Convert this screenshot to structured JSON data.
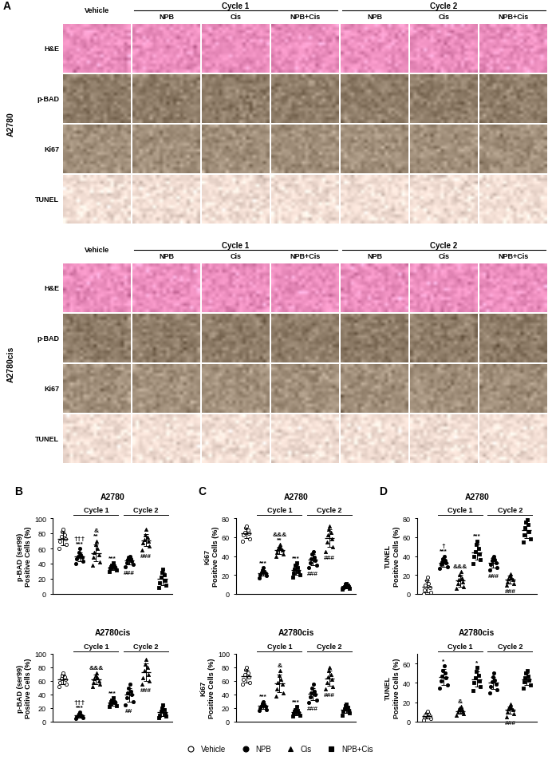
{
  "panel_a": {
    "label": "A",
    "columns": [
      "Vehicle",
      "NPB",
      "Cis",
      "NPB+Cis",
      "NPB",
      "Cis",
      "NPB+Cis"
    ],
    "cycles": [
      "Cycle 1",
      "Cycle 2"
    ],
    "rows": [
      "H&E",
      "p-BAD",
      "Ki67",
      "TUNEL"
    ],
    "cell_lines": [
      "A2780",
      "A2780cis"
    ]
  },
  "legend": "lower center",
  "legend_groups": [
    {
      "name": "Vehicle",
      "marker": "circle_open"
    },
    {
      "name": "NPB",
      "marker": "circle"
    },
    {
      "name": "Cis",
      "marker": "triangle"
    },
    {
      "name": "NPB+Cis",
      "marker": "square"
    }
  ],
  "chart_data": [
    {
      "type": "scatter",
      "panel_label": "B",
      "title": "A2780",
      "ylabel": "p-BAD (ser99)\nPositive Cells (%)",
      "ylim": [
        0,
        100
      ],
      "yticks": [
        0,
        20,
        40,
        60,
        80,
        100
      ],
      "tick_labels": "y",
      "color": "#000000",
      "cycles": [
        "Cycle 1",
        "Cycle 2"
      ],
      "series": [
        {
          "name": "Vehicle",
          "marker": "circle_open",
          "values": [
            60,
            65,
            70,
            73,
            76,
            78,
            82,
            85
          ],
          "mean": 73,
          "sd": 9
        },
        {
          "name": "NPB",
          "marker": "circle",
          "values": [
            40,
            43,
            46,
            48,
            50,
            52,
            55,
            60
          ],
          "mean": 49,
          "sd": 6,
          "annotation": [
            "†††",
            "***"
          ]
        },
        {
          "name": "Cis",
          "marker": "triangle",
          "values": [
            38,
            42,
            48,
            52,
            55,
            60,
            65,
            70
          ],
          "mean": 54,
          "sd": 11,
          "annotation": [
            "&",
            "**"
          ]
        },
        {
          "name": "NPB+Cis",
          "marker": "square",
          "values": [
            30,
            32,
            34,
            35,
            36,
            37,
            38,
            41
          ],
          "mean": 35,
          "sd": 3,
          "annotation": [
            "***"
          ]
        },
        {
          "name": "NPB",
          "marker": "circle",
          "values": [
            36,
            39,
            41,
            43,
            45,
            46,
            48,
            50
          ],
          "mean": 44,
          "sd": 5,
          "annotation_below": [
            "###"
          ]
        },
        {
          "name": "Cis",
          "marker": "triangle",
          "values": [
            58,
            63,
            67,
            70,
            72,
            75,
            78,
            85
          ],
          "mean": 71,
          "sd": 8,
          "annotation_below": [
            "###"
          ]
        },
        {
          "name": "NPB+Cis",
          "marker": "square",
          "values": [
            8,
            12,
            15,
            18,
            22,
            25,
            28,
            33
          ],
          "mean": 20,
          "sd": 8
        }
      ]
    },
    {
      "type": "scatter",
      "panel_label": "C",
      "title": "A2780",
      "ylabel": "Ki67\nPositive Cells (%)",
      "ylim": [
        0,
        80
      ],
      "yticks": [
        0,
        20,
        40,
        60,
        80
      ],
      "tick_labels": "y",
      "color": "#000000",
      "cycles": [
        "Cycle 1",
        "Cycle 2"
      ],
      "series": [
        {
          "name": "Vehicle",
          "marker": "circle_open",
          "values": [
            56,
            58,
            62,
            64,
            65,
            67,
            70,
            72
          ],
          "mean": 64,
          "sd": 5
        },
        {
          "name": "NPB",
          "marker": "circle",
          "values": [
            17,
            19,
            20,
            22,
            23,
            24,
            25,
            28
          ],
          "mean": 22,
          "sd": 3,
          "annotation": [
            "***"
          ]
        },
        {
          "name": "Cis",
          "marker": "triangle",
          "values": [
            40,
            42,
            44,
            46,
            47,
            48,
            50,
            52
          ],
          "mean": 46,
          "sd": 4,
          "annotation": [
            "&&&",
            "**"
          ]
        },
        {
          "name": "NPB+Cis",
          "marker": "square",
          "values": [
            18,
            20,
            22,
            24,
            26,
            28,
            30,
            33
          ],
          "mean": 25,
          "sd": 5,
          "annotation": [
            "***"
          ]
        },
        {
          "name": "NPB",
          "marker": "circle",
          "values": [
            28,
            30,
            33,
            35,
            37,
            39,
            42,
            45
          ],
          "mean": 36,
          "sd": 6,
          "annotation_below": [
            "###"
          ]
        },
        {
          "name": "Cis",
          "marker": "triangle",
          "values": [
            45,
            50,
            55,
            58,
            62,
            65,
            68,
            72
          ],
          "mean": 59,
          "sd": 9,
          "annotation_below": [
            "###"
          ]
        },
        {
          "name": "NPB+Cis",
          "marker": "square",
          "values": [
            5,
            6,
            7,
            8,
            8,
            9,
            10,
            11
          ],
          "mean": 8,
          "sd": 2
        }
      ]
    },
    {
      "type": "scatter",
      "panel_label": "D",
      "title": "A2780",
      "ylabel": "TUNEL\nPositive Cells (%)",
      "ylim": [
        0,
        80
      ],
      "yticks": [
        0,
        20,
        40,
        60,
        80
      ],
      "tick_labels": "y",
      "color": "#000000",
      "cycles": [
        "Cycle 1",
        "Cycle 2"
      ],
      "series": [
        {
          "name": "Vehicle",
          "marker": "circle_open",
          "values": [
            0,
            2,
            4,
            7,
            9,
            11,
            14,
            18
          ],
          "mean": 8,
          "sd": 6
        },
        {
          "name": "NPB",
          "marker": "circle",
          "values": [
            27,
            29,
            31,
            33,
            34,
            35,
            37,
            40
          ],
          "mean": 33,
          "sd": 4,
          "annotation": [
            "†",
            "***"
          ]
        },
        {
          "name": "Cis",
          "marker": "triangle",
          "values": [
            6,
            8,
            11,
            13,
            15,
            17,
            20,
            24
          ],
          "mean": 14,
          "sd": 6,
          "annotation": [
            "&&&"
          ]
        },
        {
          "name": "NPB+Cis",
          "marker": "square",
          "values": [
            32,
            36,
            40,
            42,
            45,
            48,
            52,
            56
          ],
          "mean": 44,
          "sd": 8,
          "annotation": [
            "***"
          ]
        },
        {
          "name": "NPB",
          "marker": "circle",
          "values": [
            25,
            28,
            31,
            33,
            35,
            36,
            38,
            40
          ],
          "mean": 33,
          "sd": 5,
          "annotation_below": [
            "###"
          ]
        },
        {
          "name": "Cis",
          "marker": "triangle",
          "values": [
            9,
            11,
            13,
            15,
            16,
            17,
            19,
            21
          ],
          "mean": 15,
          "sd": 4,
          "annotation_below": [
            "###"
          ]
        },
        {
          "name": "NPB+Cis",
          "marker": "square",
          "values": [
            55,
            58,
            62,
            66,
            70,
            73,
            76,
            78
          ],
          "mean": 67,
          "sd": 8
        }
      ]
    },
    {
      "type": "scatter",
      "title": "A2780cis",
      "ylabel": "p-BAD (ser99)\nPositive Cells (%)",
      "ylim": [
        0,
        100
      ],
      "yticks": [
        0,
        20,
        40,
        60,
        80,
        100
      ],
      "tick_labels": "y",
      "color": "#000000",
      "cycles": [
        "Cycle 1",
        "Cycle 2"
      ],
      "series": [
        {
          "name": "Vehicle",
          "marker": "circle_open",
          "values": [
            52,
            55,
            58,
            62,
            64,
            66,
            68,
            72
          ],
          "mean": 62,
          "sd": 7
        },
        {
          "name": "NPB",
          "marker": "circle",
          "values": [
            5,
            6,
            7,
            8,
            9,
            10,
            12,
            14
          ],
          "mean": 9,
          "sd": 3,
          "annotation": [
            "†††",
            "***"
          ]
        },
        {
          "name": "Cis",
          "marker": "triangle",
          "values": [
            52,
            55,
            58,
            60,
            63,
            65,
            68,
            72
          ],
          "mean": 62,
          "sd": 7,
          "annotation": [
            "&&&"
          ]
        },
        {
          "name": "NPB+Cis",
          "marker": "square",
          "values": [
            22,
            24,
            26,
            28,
            29,
            30,
            32,
            35
          ],
          "mean": 28,
          "sd": 4,
          "annotation": [
            "***"
          ]
        },
        {
          "name": "NPB",
          "marker": "circle",
          "values": [
            25,
            30,
            35,
            40,
            42,
            45,
            50,
            55
          ],
          "mean": 40,
          "sd": 10,
          "annotation_below": [
            "##"
          ]
        },
        {
          "name": "Cis",
          "marker": "triangle",
          "values": [
            55,
            60,
            65,
            70,
            75,
            80,
            85,
            92
          ],
          "mean": 73,
          "sd": 13,
          "annotation_below": [
            "###"
          ]
        },
        {
          "name": "NPB+Cis",
          "marker": "square",
          "values": [
            6,
            8,
            10,
            12,
            15,
            18,
            20,
            25
          ],
          "mean": 14,
          "sd": 6
        }
      ]
    },
    {
      "type": "scatter",
      "title": "A2780cis",
      "ylabel": "Ki67\nPositive Cells (%)",
      "ylim": [
        0,
        100
      ],
      "yticks": [
        0,
        20,
        40,
        60,
        80,
        100
      ],
      "tick_labels": "y",
      "color": "#000000",
      "cycles": [
        "Cycle 1",
        "Cycle 2"
      ],
      "series": [
        {
          "name": "Vehicle",
          "marker": "circle_open",
          "values": [
            55,
            58,
            62,
            66,
            70,
            72,
            76,
            80
          ],
          "mean": 67,
          "sd": 9
        },
        {
          "name": "NPB",
          "marker": "circle",
          "values": [
            16,
            18,
            20,
            22,
            23,
            25,
            27,
            30
          ],
          "mean": 23,
          "sd": 4,
          "annotation": [
            "***"
          ]
        },
        {
          "name": "Cis",
          "marker": "triangle",
          "values": [
            38,
            42,
            48,
            55,
            58,
            62,
            68,
            75
          ],
          "mean": 56,
          "sd": 13,
          "annotation": [
            "&"
          ]
        },
        {
          "name": "NPB+Cis",
          "marker": "square",
          "values": [
            8,
            10,
            12,
            13,
            15,
            16,
            18,
            22
          ],
          "mean": 14,
          "sd": 4,
          "annotation": [
            "***"
          ]
        },
        {
          "name": "NPB",
          "marker": "circle",
          "values": [
            28,
            32,
            36,
            40,
            42,
            45,
            50,
            55
          ],
          "mean": 41,
          "sd": 9,
          "annotation_below": [
            "###"
          ]
        },
        {
          "name": "Cis",
          "marker": "triangle",
          "values": [
            48,
            52,
            58,
            62,
            66,
            70,
            75,
            80
          ],
          "mean": 64,
          "sd": 11,
          "annotation_below": [
            "###"
          ]
        },
        {
          "name": "NPB+Cis",
          "marker": "square",
          "values": [
            10,
            13,
            15,
            17,
            19,
            21,
            23,
            26
          ],
          "mean": 18,
          "sd": 5
        }
      ]
    },
    {
      "type": "scatter",
      "title": "A2780cis",
      "ylabel": "TUNEL\nPositive Cells (%)",
      "ylim": [
        0,
        70
      ],
      "yticks": [
        0,
        20,
        40,
        60
      ],
      "tick_labels": "y",
      "color": "#000000",
      "cycles": [
        "Cycle 1",
        "Cycle 2"
      ],
      "series": [
        {
          "name": "Vehicle",
          "marker": "circle_open",
          "values": [
            2,
            3,
            5,
            6,
            7,
            8,
            9,
            11
          ],
          "mean": 6,
          "sd": 3
        },
        {
          "name": "NPB",
          "marker": "circle",
          "values": [
            35,
            38,
            42,
            45,
            47,
            50,
            53,
            58
          ],
          "mean": 46,
          "sd": 8,
          "annotation": [
            "*"
          ]
        },
        {
          "name": "Cis",
          "marker": "triangle",
          "values": [
            7,
            8,
            10,
            11,
            12,
            13,
            14,
            16
          ],
          "mean": 11,
          "sd": 3,
          "annotation": [
            "&"
          ]
        },
        {
          "name": "NPB+Cis",
          "marker": "square",
          "values": [
            32,
            36,
            40,
            42,
            45,
            48,
            52,
            56
          ],
          "mean": 44,
          "sd": 8,
          "annotation": [
            "*"
          ]
        },
        {
          "name": "NPB",
          "marker": "circle",
          "values": [
            30,
            33,
            36,
            39,
            41,
            43,
            46,
            50
          ],
          "mean": 40,
          "sd": 6
        },
        {
          "name": "Cis",
          "marker": "triangle",
          "values": [
            5,
            8,
            10,
            12,
            13,
            14,
            16,
            18
          ],
          "mean": 12,
          "sd": 4,
          "annotation_below": [
            "###"
          ]
        },
        {
          "name": "NPB+Cis",
          "marker": "square",
          "values": [
            35,
            38,
            41,
            43,
            45,
            47,
            50,
            53
          ],
          "mean": 44,
          "sd": 6
        }
      ]
    }
  ]
}
